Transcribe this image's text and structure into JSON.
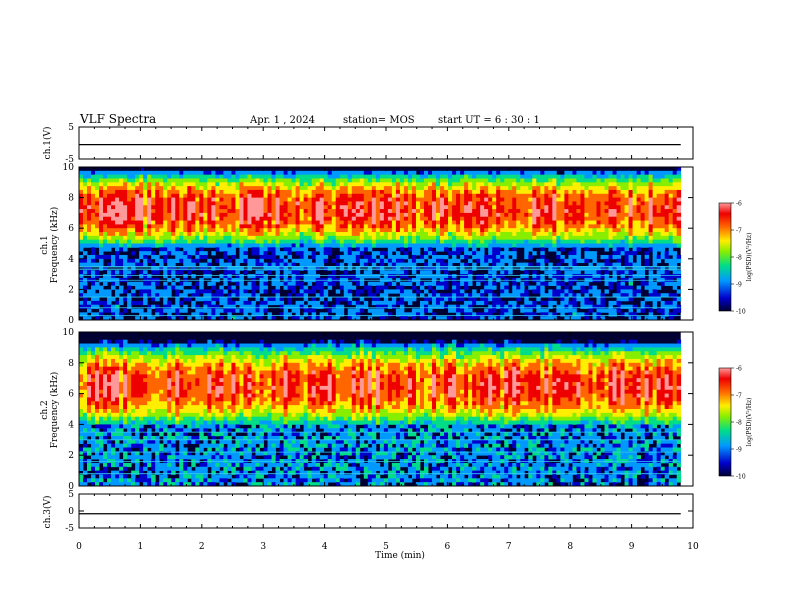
{
  "header": {
    "title": "VLF Spectra",
    "date": "Apr. 1  , 2024",
    "station": "station= MOS",
    "start_ut": "start  UT  =   6  : 30 : 1"
  },
  "chart_data": [
    {
      "type": "line",
      "name": "ch1-waveform",
      "ylabel": "ch.1(V)",
      "ylim": [
        -5,
        5
      ],
      "yticks": [
        5,
        -5
      ],
      "x": [
        0,
        10
      ],
      "values": [
        -0.5,
        -0.5
      ]
    },
    {
      "type": "heatmap",
      "name": "ch1-spectrogram",
      "ylabel_line1": "ch.1",
      "ylabel_line2": "Frequency (kHz)",
      "ylim": [
        0,
        10
      ],
      "yticks": [
        0,
        2,
        4,
        6,
        8,
        10
      ],
      "xlim": [
        0,
        10
      ],
      "band_low_khz": 4.8,
      "band_high_khz": 9.2,
      "peak_khz": 7.2,
      "line_frequencies_khz": [
        0.3,
        0.8,
        1.5,
        2.6,
        2.9,
        3.3,
        3.4,
        3.5
      ],
      "colorbar": {
        "label": "log(PSD)(V²/Hz)",
        "ticks": [
          -6,
          -7,
          -8,
          -9,
          -10
        ],
        "range": [
          -10,
          -6
        ]
      }
    },
    {
      "type": "heatmap",
      "name": "ch2-spectrogram",
      "ylabel_line1": "ch.2",
      "ylabel_line2": "Frequency (kHz)",
      "ylim": [
        0,
        10
      ],
      "yticks": [
        0,
        2,
        4,
        6,
        8,
        10
      ],
      "xlim": [
        0,
        10
      ],
      "band_low_khz": 4.0,
      "band_high_khz": 9.0,
      "peak_khz": 6.5,
      "line_frequencies_khz": [
        0.8,
        1.6,
        2.2,
        3.0,
        3.5
      ],
      "colorbar": {
        "label": "log(PSD)(V²/Hz)",
        "ticks": [
          -6,
          -7,
          -8,
          -9,
          -10
        ],
        "range": [
          -10,
          -6
        ]
      }
    },
    {
      "type": "line",
      "name": "ch3-waveform",
      "ylabel": "ch.3(V)",
      "ylim": [
        -5,
        5
      ],
      "yticks": [
        5,
        0,
        -5
      ],
      "x": [
        0,
        10
      ],
      "values": [
        -0.8,
        -0.8
      ]
    }
  ],
  "xaxis": {
    "label": "Time  (min)",
    "xlim": [
      0,
      10
    ],
    "ticks": [
      0,
      1,
      2,
      3,
      4,
      5,
      6,
      7,
      8,
      9,
      10
    ],
    "data_end_min": 9.8
  },
  "colors": {
    "colormap": [
      "#000033",
      "#0000cc",
      "#0099ff",
      "#00dd88",
      "#88ee00",
      "#ffee00",
      "#ff6600",
      "#ee0000",
      "#ff9999"
    ]
  }
}
